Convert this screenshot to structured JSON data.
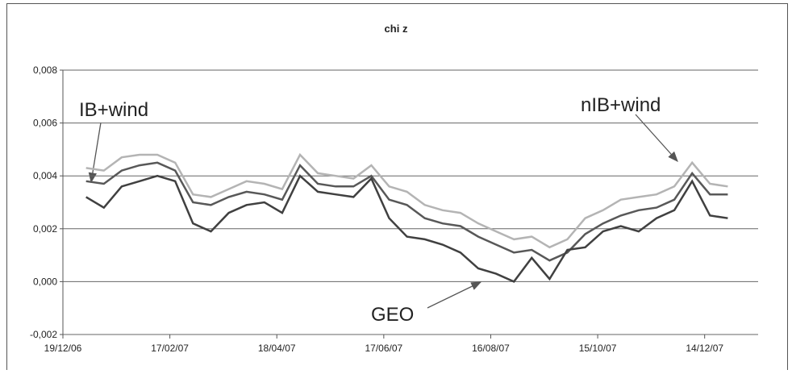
{
  "chart_data": {
    "type": "line",
    "title": "chi z",
    "x": [
      "2007-01-01",
      "2007-01-11",
      "2007-01-21",
      "2007-01-31",
      "2007-02-10",
      "2007-02-20",
      "2007-03-02",
      "2007-03-12",
      "2007-03-22",
      "2007-04-01",
      "2007-04-11",
      "2007-04-21",
      "2007-05-01",
      "2007-05-11",
      "2007-05-21",
      "2007-05-31",
      "2007-06-10",
      "2007-06-20",
      "2007-06-30",
      "2007-07-10",
      "2007-07-20",
      "2007-07-30",
      "2007-08-09",
      "2007-08-19",
      "2007-08-29",
      "2007-09-08",
      "2007-09-18",
      "2007-09-28",
      "2007-10-08",
      "2007-10-18",
      "2007-10-28",
      "2007-11-07",
      "2007-11-17",
      "2007-11-27",
      "2007-12-07",
      "2007-12-17",
      "2007-12-27"
    ],
    "series": [
      {
        "color": "#b4b4b4",
        "values": [
          0.0043,
          0.0042,
          0.0047,
          0.0048,
          0.0048,
          0.0045,
          0.0033,
          0.0032,
          0.0035,
          0.0038,
          0.0037,
          0.0035,
          0.0048,
          0.0041,
          0.004,
          0.0039,
          0.0044,
          0.0036,
          0.0034,
          0.0029,
          0.0027,
          0.0026,
          0.0022,
          0.0019,
          0.0016,
          0.0017,
          0.0013,
          0.0016,
          0.0024,
          0.0027,
          0.0031,
          0.0032,
          0.0033,
          0.0036,
          0.0045,
          0.0037,
          0.0036
        ]
      },
      {
        "color": "#585858",
        "values": [
          0.0038,
          0.0037,
          0.0042,
          0.0044,
          0.0045,
          0.0042,
          0.003,
          0.0029,
          0.0032,
          0.0034,
          0.0033,
          0.0031,
          0.0044,
          0.0037,
          0.0036,
          0.0036,
          0.004,
          0.0031,
          0.0029,
          0.0024,
          0.0022,
          0.0021,
          0.0017,
          0.0014,
          0.0011,
          0.0012,
          0.0008,
          0.0011,
          0.0018,
          0.0022,
          0.0025,
          0.0027,
          0.0028,
          0.0031,
          0.0041,
          0.0033,
          0.0033
        ]
      },
      {
        "color": "#404040",
        "values": [
          0.0032,
          0.0028,
          0.0036,
          0.0038,
          0.004,
          0.0038,
          0.0022,
          0.0019,
          0.0026,
          0.0029,
          0.003,
          0.0026,
          0.004,
          0.0034,
          0.0033,
          0.0032,
          0.0039,
          0.0024,
          0.0017,
          0.0016,
          0.0014,
          0.0011,
          0.0005,
          0.0003,
          0.0,
          0.0009,
          0.0001,
          0.0012,
          0.0013,
          0.0019,
          0.0021,
          0.0019,
          0.0024,
          0.0027,
          0.0038,
          0.0025,
          0.0024
        ]
      }
    ],
    "annotations": [
      "IB+wind",
      "nIB+wind",
      "GEO"
    ],
    "xlim": [
      "2006-12-19",
      "2008-01-13"
    ],
    "xticks": [
      {
        "value": "2006-12-19",
        "label": "19/12/06"
      },
      {
        "value": "2007-02-17",
        "label": "17/02/07"
      },
      {
        "value": "2007-04-18",
        "label": "18/04/07"
      },
      {
        "value": "2007-06-17",
        "label": "17/06/07"
      },
      {
        "value": "2007-08-16",
        "label": "16/08/07"
      },
      {
        "value": "2007-10-15",
        "label": "15/10/07"
      },
      {
        "value": "2007-12-14",
        "label": "14/12/07"
      }
    ],
    "ylim": [
      -0.002,
      0.008
    ],
    "yticks": [
      {
        "value": -0.002,
        "label": "-0,002"
      },
      {
        "value": 0,
        "label": "0,000"
      },
      {
        "value": 0.002,
        "label": "0,002"
      },
      {
        "value": 0.004,
        "label": "0,004"
      },
      {
        "value": 0.006,
        "label": "0,006"
      },
      {
        "value": 0.008,
        "label": "0,008"
      }
    ],
    "grid": true
  }
}
